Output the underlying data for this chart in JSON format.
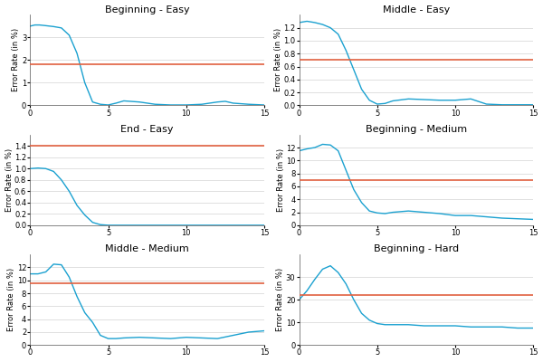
{
  "subplots": [
    {
      "title": "Beginning - Easy",
      "hline": 1.8,
      "ylim": [
        0,
        4
      ],
      "yticks": [
        0,
        1,
        2,
        3
      ],
      "curve_x": [
        0,
        0.3,
        0.6,
        1.0,
        1.5,
        2.0,
        2.5,
        3.0,
        3.5,
        4.0,
        4.5,
        5.0,
        5.5,
        6.0,
        7.0,
        8.0,
        9.0,
        10.0,
        11.0,
        12.0,
        12.5,
        13.0,
        14.0,
        15.0
      ],
      "curve_y": [
        3.5,
        3.55,
        3.55,
        3.52,
        3.48,
        3.42,
        3.1,
        2.3,
        1.0,
        0.15,
        0.05,
        0.02,
        0.1,
        0.2,
        0.15,
        0.05,
        0.02,
        0.02,
        0.05,
        0.15,
        0.18,
        0.1,
        0.05,
        0.02
      ]
    },
    {
      "title": "Middle - Easy",
      "hline": 0.7,
      "ylim": [
        0,
        1.4
      ],
      "yticks": [
        0.0,
        0.2,
        0.4,
        0.6,
        0.8,
        1.0,
        1.2
      ],
      "curve_x": [
        0,
        0.5,
        1.0,
        1.5,
        2.0,
        2.5,
        3.0,
        3.5,
        4.0,
        4.5,
        5.0,
        5.5,
        6.0,
        7.0,
        8.0,
        9.0,
        10.0,
        11.0,
        12.0,
        13.0,
        14.0,
        15.0
      ],
      "curve_y": [
        1.28,
        1.3,
        1.28,
        1.25,
        1.2,
        1.1,
        0.85,
        0.55,
        0.25,
        0.08,
        0.02,
        0.03,
        0.07,
        0.1,
        0.09,
        0.08,
        0.08,
        0.1,
        0.02,
        0.01,
        0.01,
        0.01
      ]
    },
    {
      "title": "End - Easy",
      "hline": 1.4,
      "ylim": [
        0,
        1.6
      ],
      "yticks": [
        0.0,
        0.2,
        0.4,
        0.6,
        0.8,
        1.0,
        1.2,
        1.4
      ],
      "curve_x": [
        0,
        0.5,
        1.0,
        1.5,
        2.0,
        2.5,
        3.0,
        3.5,
        4.0,
        4.5,
        5.0,
        6.0,
        7.0,
        8.0,
        15.0
      ],
      "curve_y": [
        1.0,
        1.01,
        1.0,
        0.95,
        0.8,
        0.6,
        0.35,
        0.18,
        0.05,
        0.01,
        0.0,
        0.0,
        0.0,
        0.0,
        0.0
      ]
    },
    {
      "title": "Beginning - Medium",
      "hline": 7.0,
      "ylim": [
        0,
        14
      ],
      "yticks": [
        0,
        2,
        4,
        6,
        8,
        10,
        12
      ],
      "curve_x": [
        0,
        0.5,
        1.0,
        1.5,
        2.0,
        2.5,
        3.0,
        3.5,
        4.0,
        4.5,
        5.0,
        5.5,
        6.0,
        7.0,
        8.0,
        9.0,
        10.0,
        11.0,
        12.0,
        13.0,
        14.0,
        15.0
      ],
      "curve_y": [
        11.5,
        11.8,
        12.0,
        12.5,
        12.4,
        11.5,
        8.5,
        5.5,
        3.5,
        2.2,
        1.9,
        1.8,
        2.0,
        2.2,
        2.0,
        1.8,
        1.5,
        1.5,
        1.3,
        1.1,
        1.0,
        0.9
      ]
    },
    {
      "title": "Middle - Medium",
      "hline": 9.5,
      "ylim": [
        0,
        14
      ],
      "yticks": [
        0,
        2,
        4,
        6,
        8,
        10,
        12
      ],
      "curve_x": [
        0,
        0.5,
        1.0,
        1.5,
        2.0,
        2.5,
        3.0,
        3.5,
        4.0,
        4.5,
        5.0,
        5.5,
        6.0,
        7.0,
        8.0,
        9.0,
        10.0,
        11.0,
        12.0,
        13.0,
        14.0,
        15.0
      ],
      "curve_y": [
        11.0,
        11.0,
        11.3,
        12.5,
        12.4,
        10.5,
        7.5,
        5.0,
        3.5,
        1.5,
        1.0,
        1.0,
        1.1,
        1.2,
        1.1,
        1.0,
        1.2,
        1.1,
        1.0,
        1.5,
        2.0,
        2.2
      ]
    },
    {
      "title": "Beginning - Hard",
      "hline": 22.0,
      "ylim": [
        0,
        40
      ],
      "yticks": [
        0,
        10,
        20,
        30
      ],
      "curve_x": [
        0,
        0.5,
        1.0,
        1.5,
        2.0,
        2.5,
        3.0,
        3.5,
        4.0,
        4.5,
        5.0,
        5.5,
        6.0,
        7.0,
        8.0,
        9.0,
        10.0,
        11.0,
        12.0,
        13.0,
        14.0,
        15.0
      ],
      "curve_y": [
        20.0,
        24.0,
        29.0,
        33.5,
        35.0,
        32.0,
        27.0,
        20.0,
        14.0,
        11.0,
        9.5,
        9.0,
        9.0,
        9.0,
        8.5,
        8.5,
        8.5,
        8.0,
        8.0,
        8.0,
        7.5,
        7.5
      ]
    }
  ],
  "line_color": "#1ba1d0",
  "hline_color": "#e06040",
  "bg_color": "#ffffff",
  "ylabel": "Error Rate (in %)",
  "grid_color": "#e0e0e0",
  "title_fontsize": 8,
  "label_fontsize": 6,
  "tick_fontsize": 6
}
